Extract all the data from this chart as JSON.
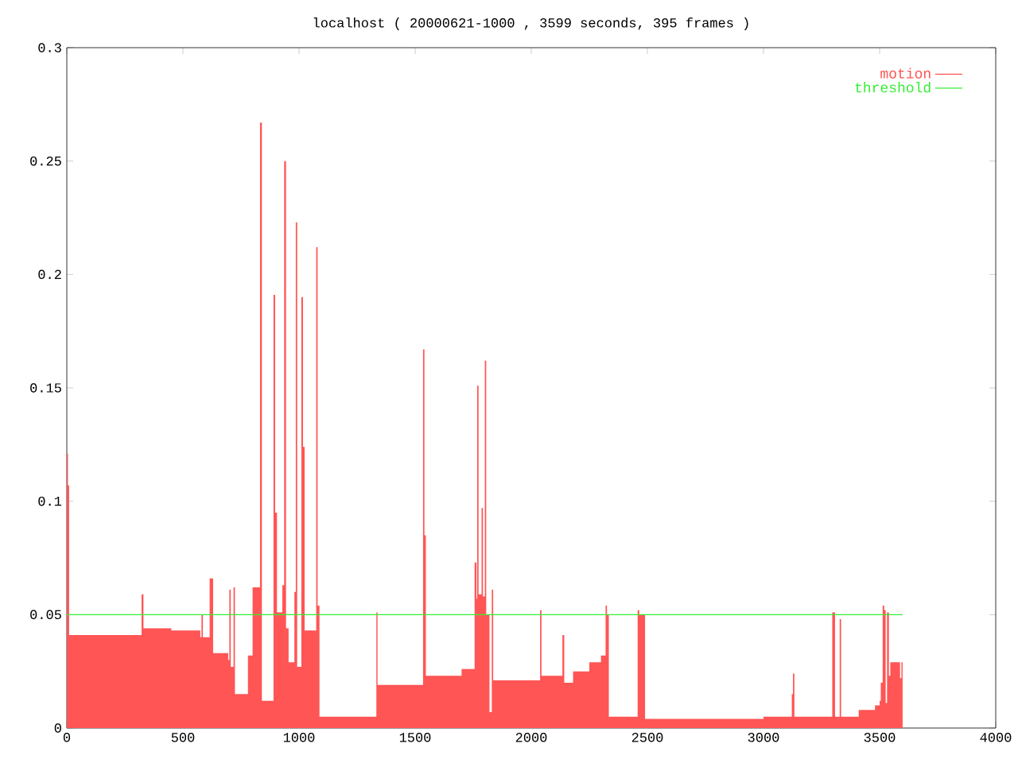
{
  "chart_data": {
    "type": "area",
    "title": "localhost ( 20000621-1000 , 3599 seconds, 395 frames )",
    "xlim": [
      0,
      4000
    ],
    "xticks": [
      0,
      500,
      1000,
      1500,
      2000,
      2500,
      3000,
      3500,
      4000
    ],
    "ylim": [
      0,
      0.3
    ],
    "yticks": [
      0,
      0.05,
      0.1,
      0.15,
      0.2,
      0.25,
      0.3
    ],
    "legend": "top right",
    "series": [
      {
        "name": "motion",
        "color": "#ff5555",
        "x": [
          0,
          5,
          10,
          322,
          330,
          450,
          575,
          580,
          586,
          615,
          630,
          695,
          700,
          706,
          718,
          724,
          780,
          800,
          832,
          840,
          884,
          890,
          897,
          905,
          928,
          936,
          944,
          955,
          980,
          986,
          992,
          1010,
          1017,
          1024,
          1074,
          1080,
          1088,
          1333,
          1338,
          1534,
          1540,
          1546,
          1700,
          1756,
          1764,
          1767,
          1773,
          1786,
          1792,
          1800,
          1806,
          1820,
          1830,
          1836,
          2038,
          2044,
          2134,
          2142,
          2180,
          2250,
          2300,
          2320,
          2326,
          2334,
          2458,
          2465,
          2490,
          3000,
          3122,
          3127,
          3133,
          3296,
          3308,
          3328,
          3334,
          3410,
          3480,
          3500,
          3505,
          3513,
          3520,
          3526,
          3532,
          3540,
          3546,
          3588,
          3594,
          3599
        ],
        "values": [
          0.121,
          0.107,
          0.041,
          0.059,
          0.044,
          0.043,
          0.04,
          0.05,
          0.04,
          0.066,
          0.033,
          0.03,
          0.061,
          0.027,
          0.062,
          0.015,
          0.032,
          0.062,
          0.267,
          0.012,
          0.012,
          0.191,
          0.095,
          0.051,
          0.063,
          0.25,
          0.044,
          0.029,
          0.06,
          0.223,
          0.027,
          0.19,
          0.124,
          0.043,
          0.212,
          0.054,
          0.005,
          0.051,
          0.019,
          0.167,
          0.085,
          0.023,
          0.026,
          0.073,
          0.057,
          0.151,
          0.059,
          0.097,
          0.058,
          0.162,
          0.05,
          0.007,
          0.061,
          0.021,
          0.052,
          0.023,
          0.041,
          0.02,
          0.025,
          0.029,
          0.032,
          0.054,
          0.05,
          0.005,
          0.052,
          0.05,
          0.004,
          0.005,
          0.015,
          0.024,
          0.005,
          0.051,
          0.005,
          0.048,
          0.005,
          0.008,
          0.01,
          0.012,
          0.02,
          0.054,
          0.052,
          0.011,
          0.051,
          0.023,
          0.029,
          0.022,
          0.029,
          0.029
        ]
      },
      {
        "name": "threshold",
        "type": "line",
        "color": "#33ee33",
        "x": [
          0,
          3599
        ],
        "values": [
          0.05,
          0.05
        ]
      }
    ]
  }
}
